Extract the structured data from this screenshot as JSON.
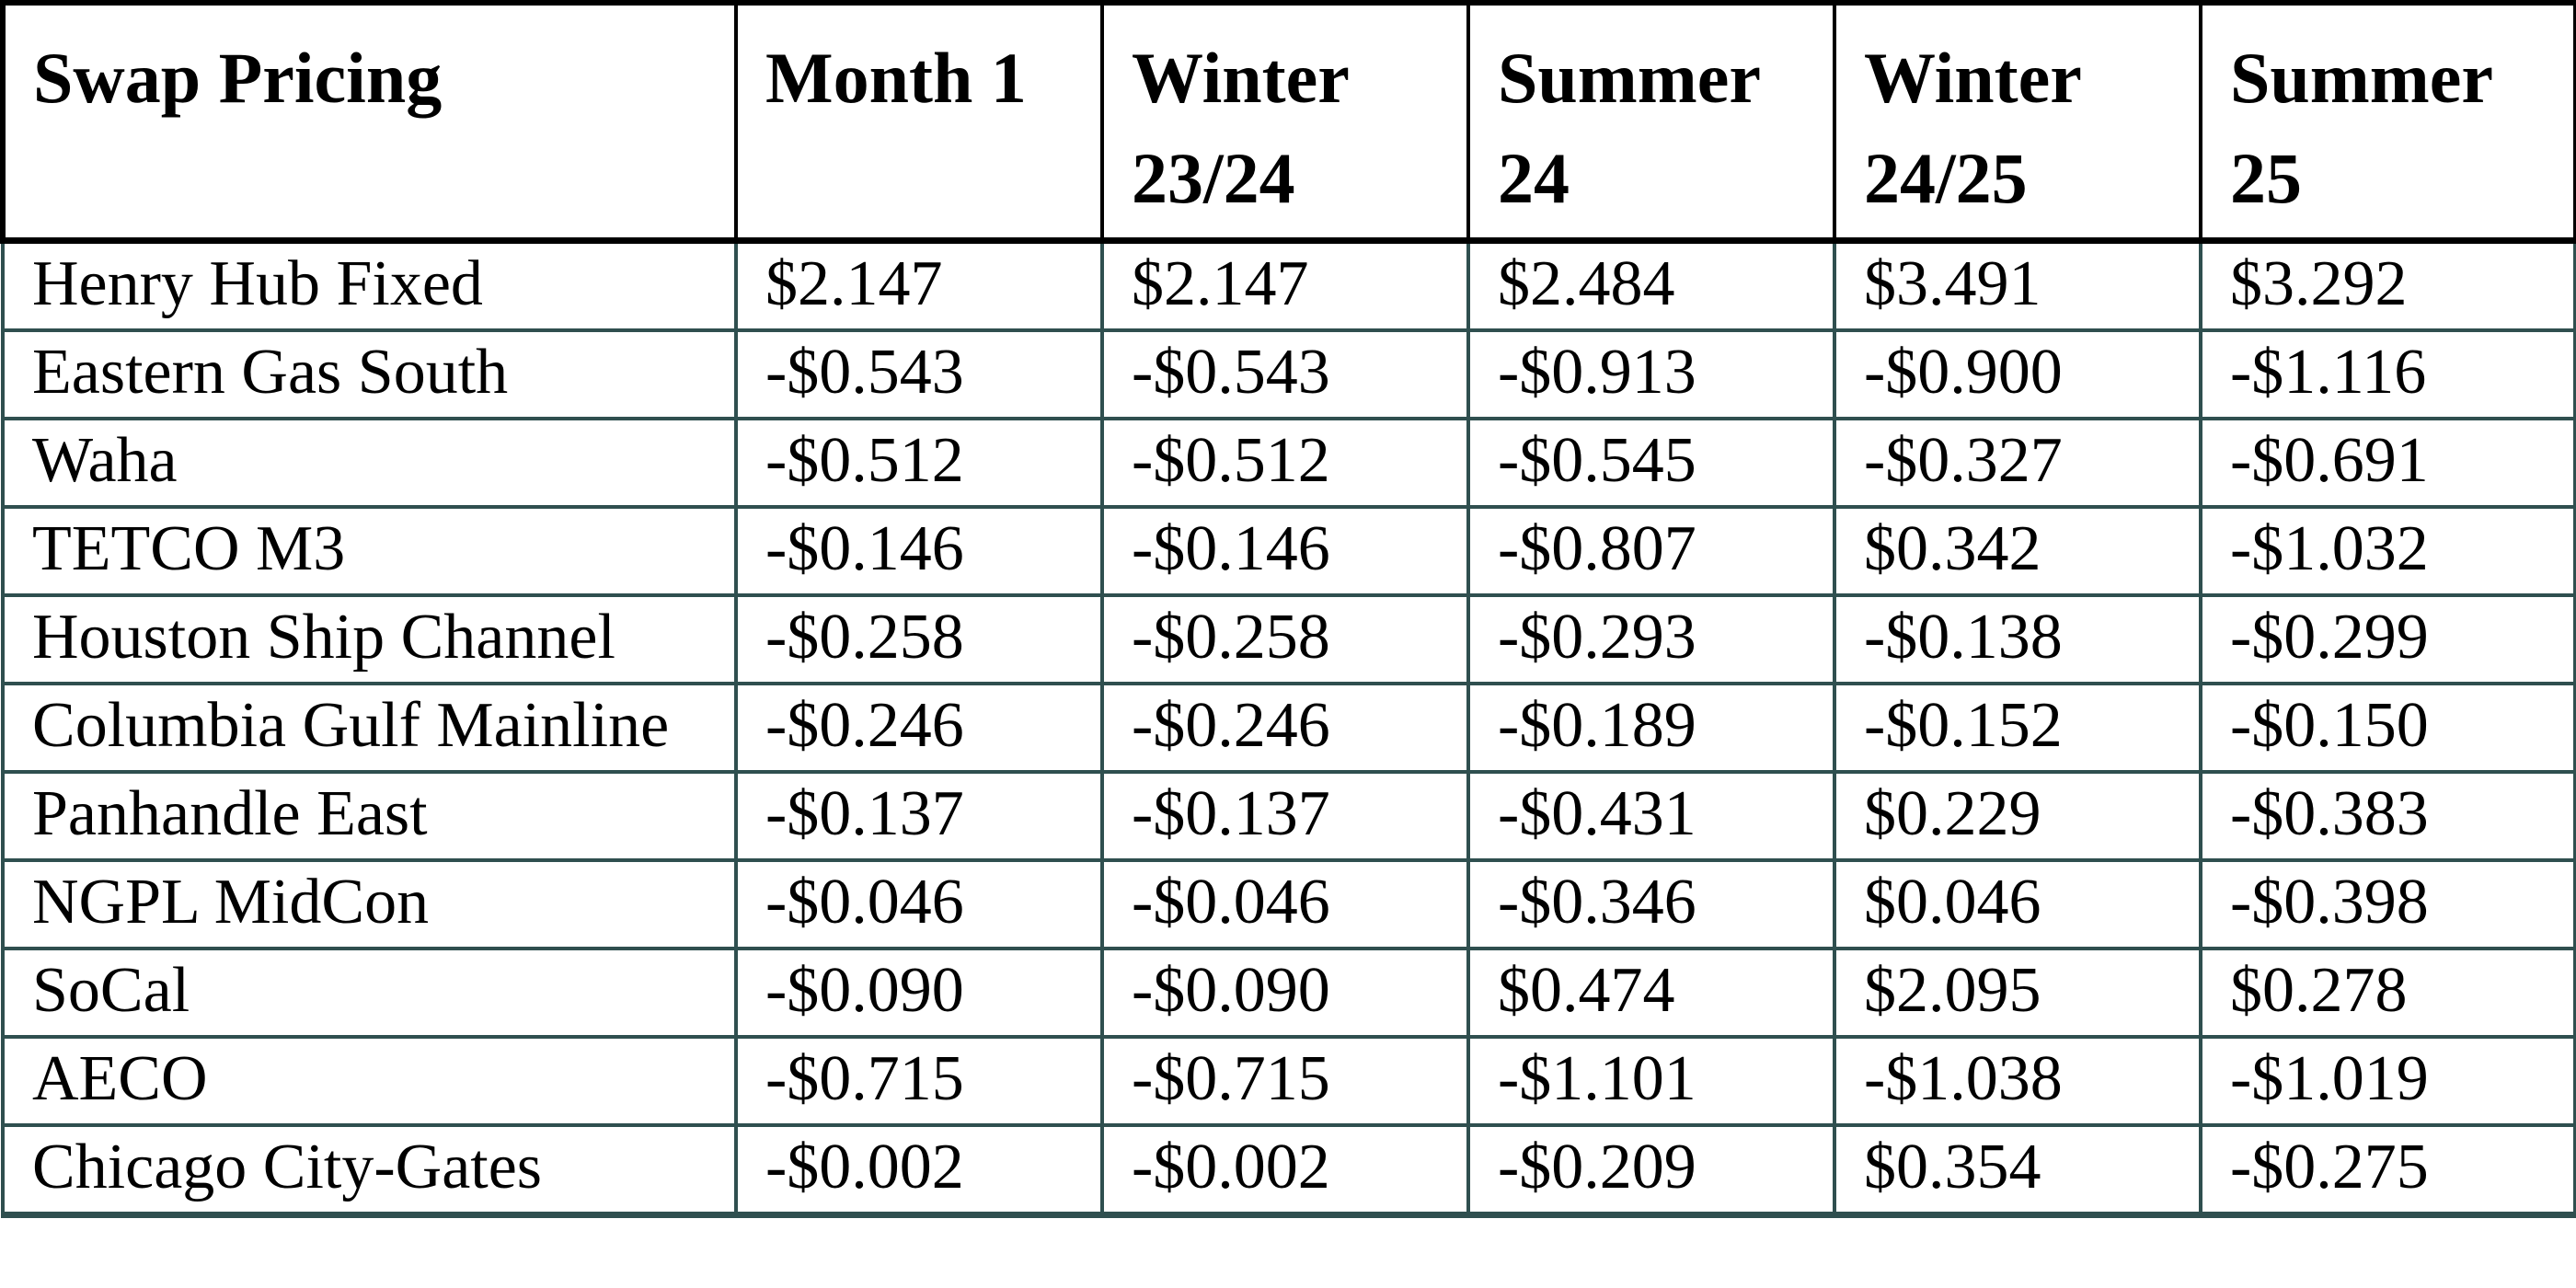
{
  "table": {
    "corner_header": "Swap Pricing",
    "columns": [
      "Month 1",
      "Winter 23/24",
      "Summer 24",
      "Winter 24/25",
      "Summer 25"
    ],
    "rows": [
      {
        "label": "Henry Hub Fixed",
        "values": [
          "$2.147",
          "$2.147",
          "$2.484",
          "$3.491",
          "$3.292"
        ]
      },
      {
        "label": "Eastern Gas South",
        "values": [
          "-$0.543",
          "-$0.543",
          "-$0.913",
          "-$0.900",
          "-$1.116"
        ]
      },
      {
        "label": "Waha",
        "values": [
          "-$0.512",
          "-$0.512",
          "-$0.545",
          "-$0.327",
          "-$0.691"
        ]
      },
      {
        "label": "TETCO M3",
        "values": [
          "-$0.146",
          "-$0.146",
          "-$0.807",
          "$0.342",
          "-$1.032"
        ]
      },
      {
        "label": "Houston Ship Channel",
        "values": [
          "-$0.258",
          "-$0.258",
          "-$0.293",
          "-$0.138",
          "-$0.299"
        ]
      },
      {
        "label": "Columbia Gulf Mainline",
        "values": [
          "-$0.246",
          "-$0.246",
          "-$0.189",
          "-$0.152",
          "-$0.150"
        ]
      },
      {
        "label": "Panhandle East",
        "values": [
          "-$0.137",
          "-$0.137",
          "-$0.431",
          "$0.229",
          "-$0.383"
        ]
      },
      {
        "label": "NGPL MidCon",
        "values": [
          "-$0.046",
          "-$0.046",
          "-$0.346",
          "$0.046",
          "-$0.398"
        ]
      },
      {
        "label": "SoCal",
        "values": [
          "-$0.090",
          "-$0.090",
          "$0.474",
          "$2.095",
          "$0.278"
        ]
      },
      {
        "label": "AECO",
        "values": [
          "-$0.715",
          "-$0.715",
          "-$1.101",
          "-$1.038",
          "-$1.019"
        ]
      },
      {
        "label": "Chicago City-Gates",
        "values": [
          "-$0.002",
          "-$0.002",
          "-$0.209",
          "$0.354",
          "-$0.275"
        ]
      }
    ],
    "colors": {
      "header_border": "#000000",
      "grid_border": "#2F4F4F",
      "text": "#000000",
      "background": "#ffffff"
    }
  }
}
